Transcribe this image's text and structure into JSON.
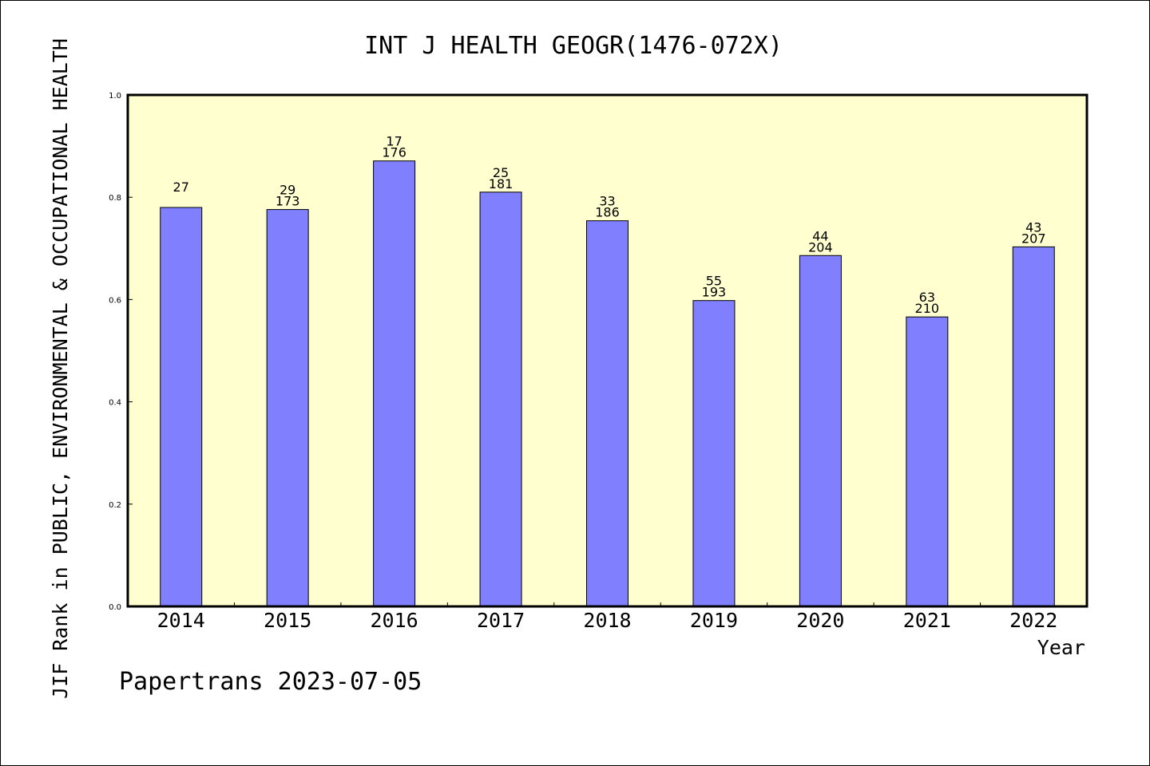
{
  "chart_data": {
    "type": "bar",
    "title": "INT J HEALTH GEOGR(1476-072X)",
    "xlabel": "Year",
    "ylabel": "JIF Rank in PUBLIC, ENVIRONMENTAL & OCCUPATIONAL HEALTH",
    "watermark": "Papertrans 2023-07-05",
    "categories": [
      "2014",
      "2015",
      "2016",
      "2017",
      "2018",
      "2019",
      "2020",
      "2021",
      "2022"
    ],
    "values": [
      0.78,
      0.776,
      0.871,
      0.81,
      0.754,
      0.598,
      0.686,
      0.566,
      0.703
    ],
    "rank_labels": [
      "27",
      "29",
      "17",
      "25",
      "33",
      "55",
      "44",
      "63",
      "43"
    ],
    "total_labels": [
      "",
      "173",
      "176",
      "181",
      "186",
      "193",
      "204",
      "210",
      "207"
    ],
    "ylim": [
      0,
      1.0
    ],
    "yticks": [
      "0.0",
      "0.2",
      "0.4",
      "0.6",
      "0.8",
      "1.0"
    ],
    "grid": false,
    "colors": {
      "plot_background": "#ffffd0",
      "bar_fill": "#8080ff",
      "bar_stroke": "#000000"
    }
  }
}
